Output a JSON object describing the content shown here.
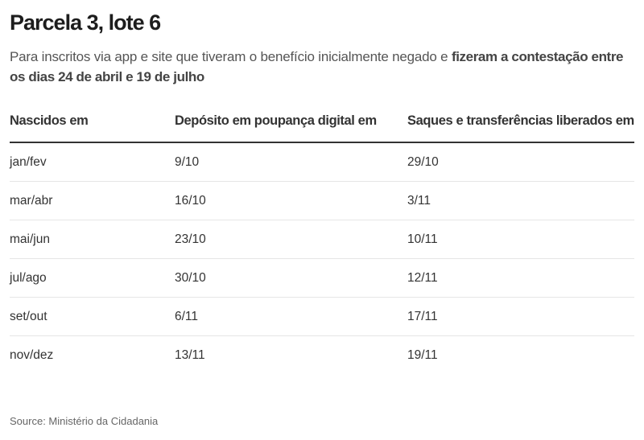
{
  "title": "Parcela 3, lote 6",
  "subtitle_regular": "Para inscritos via app e site que tiveram o benefício inicialmente negado e ",
  "subtitle_bold": "fizeram a contestação entre os dias 24 de abril e 19 de julho",
  "chart_data": {
    "type": "table",
    "columns": [
      "Nascidos em",
      "Depósito em poupança digital em",
      "Saques e transferências liberados em"
    ],
    "rows": [
      [
        "jan/fev",
        "9/10",
        "29/10"
      ],
      [
        "mar/abr",
        "16/10",
        "3/11"
      ],
      [
        "mai/jun",
        "23/10",
        "10/11"
      ],
      [
        "jul/ago",
        "30/10",
        "12/11"
      ],
      [
        "set/out",
        "6/11",
        "17/11"
      ],
      [
        "nov/dez",
        "13/11",
        "19/11"
      ]
    ]
  },
  "source": "Source: Ministério da Cidadania"
}
